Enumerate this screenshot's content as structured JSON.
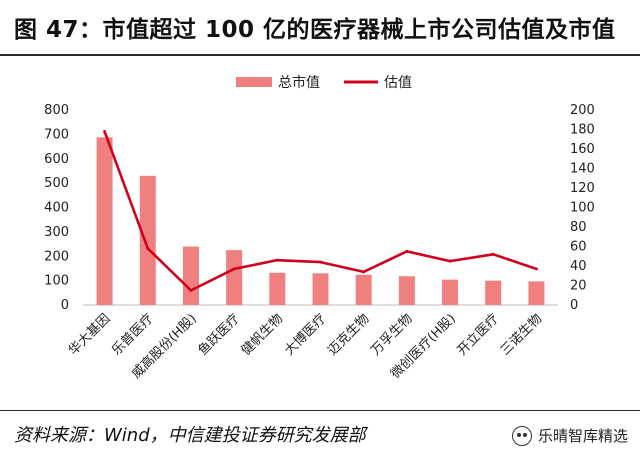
{
  "figure": {
    "title": "图 47：市值超过 100 亿的医疗器械上市公司估值及市值",
    "source": "资料来源：Wind，中信建投证券研究发展部",
    "watermark": "乐晴智库精选"
  },
  "chart_data": {
    "type": "bar+line",
    "categories": [
      "华大基因",
      "乐普医疗",
      "威高股份(H股)",
      "鱼跃医疗",
      "健帆生物",
      "大博医疗",
      "迈克生物",
      "万孚生物",
      "微创医疗(H股)",
      "开立医疗",
      "三诺生物"
    ],
    "series": [
      {
        "name": "总市值",
        "type": "bar",
        "axis": "left",
        "color": "#f08080",
        "values": [
          688,
          530,
          240,
          225,
          132,
          130,
          124,
          118,
          104,
          100,
          97
        ]
      },
      {
        "name": "估值",
        "type": "line",
        "axis": "right",
        "color": "#d0021b",
        "values": [
          178,
          58,
          15,
          37,
          46,
          44,
          34,
          55,
          45,
          52,
          37
        ]
      }
    ],
    "y_left": {
      "min": 0,
      "max": 800,
      "ticks": [
        "0",
        "100",
        "200",
        "300",
        "400",
        "500",
        "600",
        "700",
        "800"
      ]
    },
    "y_right": {
      "min": 0,
      "max": 200,
      "ticks": [
        "0",
        "20",
        "40",
        "60",
        "80",
        "100",
        "120",
        "140",
        "160",
        "180",
        "200"
      ]
    },
    "legend_position": "top-center",
    "grid": false
  }
}
